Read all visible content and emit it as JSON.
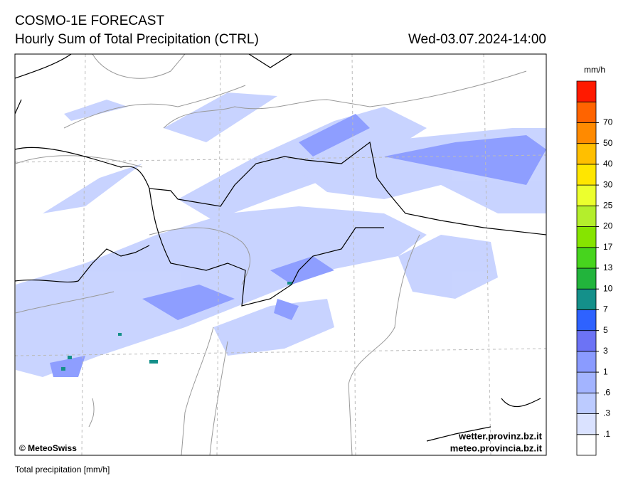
{
  "header": {
    "title": "COSMO-1E FORECAST",
    "subtitle": "Hourly Sum of Total Precipitation (CTRL)",
    "datetime": "Wed-03.07.2024-14:00"
  },
  "legend": {
    "unit": "mm/h",
    "levels": [
      {
        "value": 0.1,
        "label": ".1"
      },
      {
        "value": 0.3,
        "label": ".3"
      },
      {
        "value": 0.6,
        "label": ".6"
      },
      1,
      3,
      5,
      7,
      10,
      13,
      17,
      20,
      25,
      30,
      40,
      50,
      70
    ],
    "colors": [
      "#ffffff",
      "#dae2ff",
      "#bccbff",
      "#a3b4ff",
      "#8a9bff",
      "#6c73f5",
      "#2e62ff",
      "#14908a",
      "#22b43c",
      "#47d41e",
      "#86e400",
      "#b4ee2c",
      "#ecff2e",
      "#ffe600",
      "#ffbf00",
      "#ff8a00",
      "#ff6400",
      "#ff1a00"
    ]
  },
  "credits": {
    "left": "© MeteoSwiss",
    "right1": "wetter.provinz.bz.it",
    "right2": "meteo.provincia.bz.it"
  },
  "footer": "Total precipitation [mm/h]"
}
